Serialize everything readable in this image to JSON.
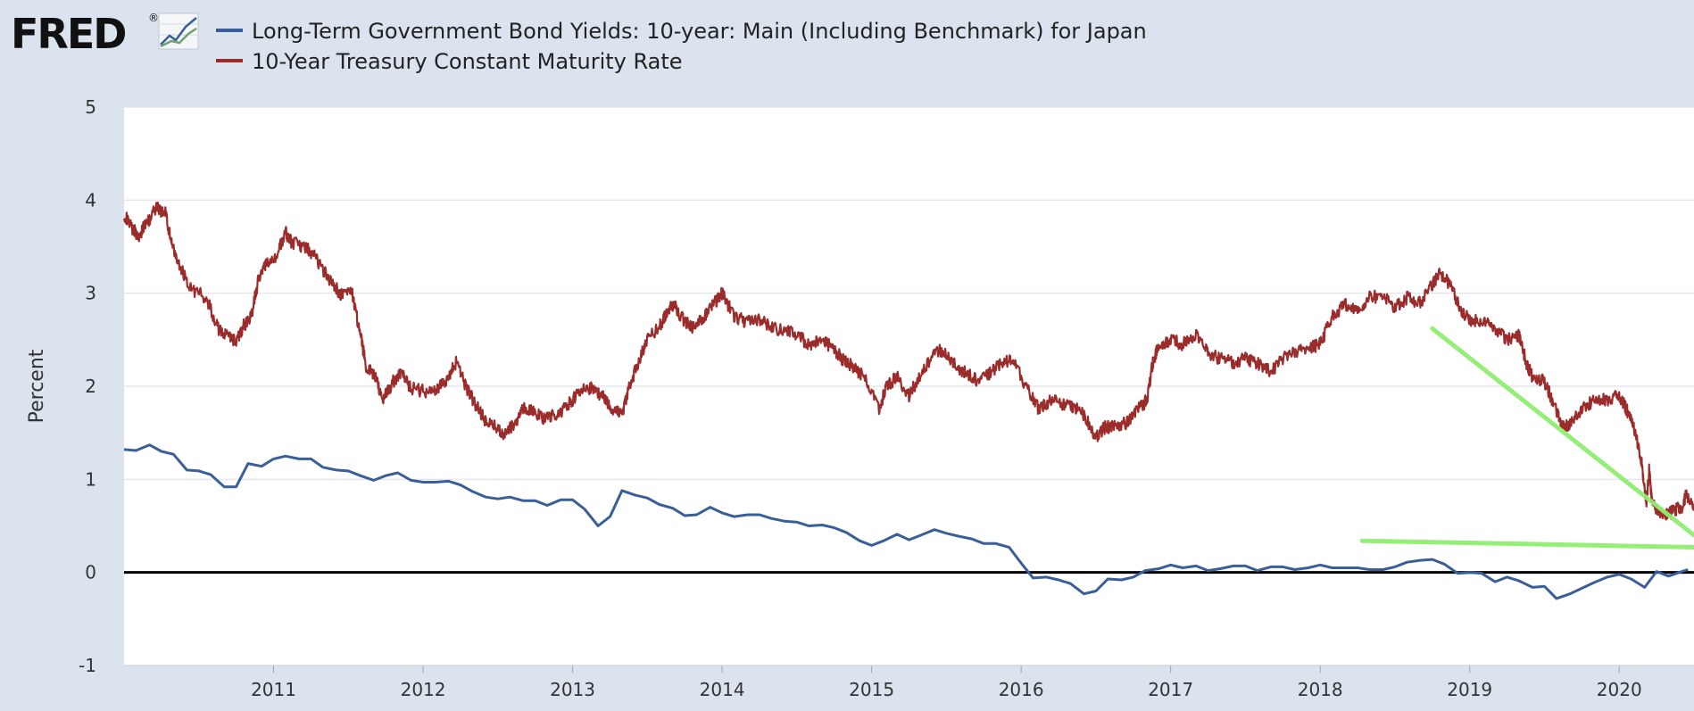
{
  "logo": {
    "text": "FRED",
    "registered": "®"
  },
  "chart_data": {
    "type": "line",
    "ylabel": "Percent",
    "xlabel": "",
    "ylim": [
      -1,
      5
    ],
    "yticks": [
      -1,
      0,
      1,
      2,
      3,
      4,
      5
    ],
    "x_range": [
      2010.0,
      2020.5
    ],
    "xticks": [
      "2011",
      "2012",
      "2013",
      "2014",
      "2015",
      "2016",
      "2017",
      "2018",
      "2019",
      "2020"
    ],
    "grid": true,
    "legend_position": "top-left",
    "colors": {
      "japan": "#3a5f98",
      "us": "#9b2c2c",
      "annotation": "#90ee70",
      "zero_line": "#000000"
    },
    "series": [
      {
        "name": "Long-Term Government Bond Yields: 10-year: Main (Including Benchmark) for Japan",
        "frequency": "monthly",
        "points": [
          [
            2010.0,
            1.32
          ],
          [
            2010.08,
            1.31
          ],
          [
            2010.17,
            1.37
          ],
          [
            2010.25,
            1.3
          ],
          [
            2010.33,
            1.27
          ],
          [
            2010.42,
            1.1
          ],
          [
            2010.5,
            1.09
          ],
          [
            2010.58,
            1.05
          ],
          [
            2010.67,
            0.92
          ],
          [
            2010.75,
            0.92
          ],
          [
            2010.83,
            1.17
          ],
          [
            2010.92,
            1.14
          ],
          [
            2011.0,
            1.22
          ],
          [
            2011.08,
            1.25
          ],
          [
            2011.17,
            1.22
          ],
          [
            2011.25,
            1.22
          ],
          [
            2011.33,
            1.13
          ],
          [
            2011.42,
            1.1
          ],
          [
            2011.5,
            1.09
          ],
          [
            2011.58,
            1.04
          ],
          [
            2011.67,
            0.99
          ],
          [
            2011.75,
            1.04
          ],
          [
            2011.83,
            1.07
          ],
          [
            2011.92,
            0.99
          ],
          [
            2012.0,
            0.97
          ],
          [
            2012.08,
            0.97
          ],
          [
            2012.17,
            0.98
          ],
          [
            2012.25,
            0.94
          ],
          [
            2012.33,
            0.87
          ],
          [
            2012.42,
            0.81
          ],
          [
            2012.5,
            0.79
          ],
          [
            2012.58,
            0.81
          ],
          [
            2012.67,
            0.77
          ],
          [
            2012.75,
            0.77
          ],
          [
            2012.83,
            0.72
          ],
          [
            2012.92,
            0.78
          ],
          [
            2013.0,
            0.78
          ],
          [
            2013.08,
            0.68
          ],
          [
            2013.17,
            0.5
          ],
          [
            2013.25,
            0.6
          ],
          [
            2013.33,
            0.88
          ],
          [
            2013.42,
            0.83
          ],
          [
            2013.5,
            0.8
          ],
          [
            2013.58,
            0.73
          ],
          [
            2013.67,
            0.69
          ],
          [
            2013.75,
            0.61
          ],
          [
            2013.83,
            0.62
          ],
          [
            2013.92,
            0.7
          ],
          [
            2014.0,
            0.64
          ],
          [
            2014.08,
            0.6
          ],
          [
            2014.17,
            0.62
          ],
          [
            2014.25,
            0.62
          ],
          [
            2014.33,
            0.58
          ],
          [
            2014.42,
            0.55
          ],
          [
            2014.5,
            0.54
          ],
          [
            2014.58,
            0.5
          ],
          [
            2014.67,
            0.51
          ],
          [
            2014.75,
            0.48
          ],
          [
            2014.83,
            0.43
          ],
          [
            2014.92,
            0.34
          ],
          [
            2015.0,
            0.29
          ],
          [
            2015.08,
            0.34
          ],
          [
            2015.17,
            0.41
          ],
          [
            2015.25,
            0.35
          ],
          [
            2015.33,
            0.4
          ],
          [
            2015.42,
            0.46
          ],
          [
            2015.5,
            0.42
          ],
          [
            2015.58,
            0.39
          ],
          [
            2015.67,
            0.36
          ],
          [
            2015.75,
            0.31
          ],
          [
            2015.83,
            0.31
          ],
          [
            2015.92,
            0.27
          ],
          [
            2016.0,
            0.1
          ],
          [
            2016.08,
            -0.06
          ],
          [
            2016.17,
            -0.05
          ],
          [
            2016.25,
            -0.08
          ],
          [
            2016.33,
            -0.12
          ],
          [
            2016.42,
            -0.23
          ],
          [
            2016.5,
            -0.2
          ],
          [
            2016.58,
            -0.07
          ],
          [
            2016.67,
            -0.08
          ],
          [
            2016.75,
            -0.05
          ],
          [
            2016.83,
            0.02
          ],
          [
            2016.92,
            0.04
          ],
          [
            2017.0,
            0.08
          ],
          [
            2017.08,
            0.05
          ],
          [
            2017.17,
            0.07
          ],
          [
            2017.25,
            0.02
          ],
          [
            2017.33,
            0.04
          ],
          [
            2017.42,
            0.07
          ],
          [
            2017.5,
            0.07
          ],
          [
            2017.58,
            0.02
          ],
          [
            2017.67,
            0.06
          ],
          [
            2017.75,
            0.06
          ],
          [
            2017.83,
            0.03
          ],
          [
            2017.92,
            0.05
          ],
          [
            2018.0,
            0.08
          ],
          [
            2018.08,
            0.05
          ],
          [
            2018.17,
            0.05
          ],
          [
            2018.25,
            0.05
          ],
          [
            2018.33,
            0.03
          ],
          [
            2018.42,
            0.03
          ],
          [
            2018.5,
            0.06
          ],
          [
            2018.58,
            0.11
          ],
          [
            2018.67,
            0.13
          ],
          [
            2018.75,
            0.14
          ],
          [
            2018.83,
            0.09
          ],
          [
            2018.92,
            -0.01
          ],
          [
            2019.0,
            0.0
          ],
          [
            2019.08,
            -0.01
          ],
          [
            2019.17,
            -0.1
          ],
          [
            2019.25,
            -0.05
          ],
          [
            2019.33,
            -0.09
          ],
          [
            2019.42,
            -0.16
          ],
          [
            2019.5,
            -0.15
          ],
          [
            2019.58,
            -0.28
          ],
          [
            2019.67,
            -0.23
          ],
          [
            2019.75,
            -0.17
          ],
          [
            2019.83,
            -0.11
          ],
          [
            2019.92,
            -0.05
          ],
          [
            2020.0,
            -0.02
          ],
          [
            2020.08,
            -0.07
          ],
          [
            2020.17,
            -0.16
          ],
          [
            2020.25,
            0.01
          ],
          [
            2020.33,
            -0.04
          ],
          [
            2020.42,
            0.01
          ],
          [
            2020.46,
            0.03
          ]
        ]
      },
      {
        "name": "10-Year Treasury Constant Maturity Rate",
        "frequency": "daily",
        "points": [
          [
            2010.0,
            3.85
          ],
          [
            2010.05,
            3.7
          ],
          [
            2010.1,
            3.62
          ],
          [
            2010.15,
            3.75
          ],
          [
            2010.22,
            3.92
          ],
          [
            2010.28,
            3.85
          ],
          [
            2010.32,
            3.5
          ],
          [
            2010.37,
            3.3
          ],
          [
            2010.45,
            3.05
          ],
          [
            2010.55,
            2.95
          ],
          [
            2010.63,
            2.62
          ],
          [
            2010.68,
            2.55
          ],
          [
            2010.75,
            2.48
          ],
          [
            2010.8,
            2.65
          ],
          [
            2010.85,
            2.75
          ],
          [
            2010.9,
            3.15
          ],
          [
            2010.95,
            3.3
          ],
          [
            2011.02,
            3.4
          ],
          [
            2011.08,
            3.65
          ],
          [
            2011.12,
            3.55
          ],
          [
            2011.2,
            3.5
          ],
          [
            2011.27,
            3.42
          ],
          [
            2011.33,
            3.25
          ],
          [
            2011.4,
            3.1
          ],
          [
            2011.45,
            2.98
          ],
          [
            2011.52,
            3.05
          ],
          [
            2011.58,
            2.55
          ],
          [
            2011.62,
            2.22
          ],
          [
            2011.68,
            2.1
          ],
          [
            2011.73,
            1.85
          ],
          [
            2011.8,
            2.05
          ],
          [
            2011.85,
            2.15
          ],
          [
            2011.92,
            1.98
          ],
          [
            2012.0,
            1.95
          ],
          [
            2012.08,
            1.95
          ],
          [
            2012.15,
            2.05
          ],
          [
            2012.22,
            2.25
          ],
          [
            2012.3,
            1.95
          ],
          [
            2012.37,
            1.75
          ],
          [
            2012.42,
            1.62
          ],
          [
            2012.5,
            1.55
          ],
          [
            2012.55,
            1.48
          ],
          [
            2012.62,
            1.62
          ],
          [
            2012.68,
            1.78
          ],
          [
            2012.75,
            1.7
          ],
          [
            2012.82,
            1.65
          ],
          [
            2012.9,
            1.7
          ],
          [
            2012.97,
            1.8
          ],
          [
            2013.05,
            1.95
          ],
          [
            2013.12,
            1.98
          ],
          [
            2013.2,
            1.9
          ],
          [
            2013.27,
            1.75
          ],
          [
            2013.33,
            1.7
          ],
          [
            2013.38,
            2.0
          ],
          [
            2013.45,
            2.3
          ],
          [
            2013.5,
            2.5
          ],
          [
            2013.58,
            2.65
          ],
          [
            2013.63,
            2.78
          ],
          [
            2013.68,
            2.9
          ],
          [
            2013.72,
            2.75
          ],
          [
            2013.8,
            2.62
          ],
          [
            2013.88,
            2.75
          ],
          [
            2013.95,
            2.9
          ],
          [
            2014.0,
            3.0
          ],
          [
            2014.08,
            2.75
          ],
          [
            2014.15,
            2.7
          ],
          [
            2014.25,
            2.72
          ],
          [
            2014.33,
            2.62
          ],
          [
            2014.42,
            2.6
          ],
          [
            2014.5,
            2.55
          ],
          [
            2014.58,
            2.45
          ],
          [
            2014.67,
            2.5
          ],
          [
            2014.75,
            2.4
          ],
          [
            2014.8,
            2.3
          ],
          [
            2014.88,
            2.2
          ],
          [
            2014.95,
            2.1
          ],
          [
            2015.05,
            1.75
          ],
          [
            2015.1,
            2.0
          ],
          [
            2015.17,
            2.1
          ],
          [
            2015.25,
            1.9
          ],
          [
            2015.35,
            2.2
          ],
          [
            2015.45,
            2.4
          ],
          [
            2015.5,
            2.35
          ],
          [
            2015.58,
            2.2
          ],
          [
            2015.65,
            2.12
          ],
          [
            2015.72,
            2.05
          ],
          [
            2015.8,
            2.15
          ],
          [
            2015.88,
            2.28
          ],
          [
            2015.95,
            2.25
          ],
          [
            2016.05,
            1.95
          ],
          [
            2016.12,
            1.75
          ],
          [
            2016.2,
            1.85
          ],
          [
            2016.28,
            1.8
          ],
          [
            2016.35,
            1.78
          ],
          [
            2016.42,
            1.7
          ],
          [
            2016.5,
            1.45
          ],
          [
            2016.55,
            1.55
          ],
          [
            2016.62,
            1.58
          ],
          [
            2016.7,
            1.6
          ],
          [
            2016.78,
            1.75
          ],
          [
            2016.84,
            1.85
          ],
          [
            2016.88,
            2.25
          ],
          [
            2016.92,
            2.45
          ],
          [
            2017.0,
            2.5
          ],
          [
            2017.08,
            2.45
          ],
          [
            2017.17,
            2.55
          ],
          [
            2017.25,
            2.35
          ],
          [
            2017.33,
            2.3
          ],
          [
            2017.42,
            2.25
          ],
          [
            2017.5,
            2.3
          ],
          [
            2017.58,
            2.25
          ],
          [
            2017.67,
            2.15
          ],
          [
            2017.75,
            2.3
          ],
          [
            2017.83,
            2.38
          ],
          [
            2017.92,
            2.4
          ],
          [
            2018.0,
            2.45
          ],
          [
            2018.08,
            2.75
          ],
          [
            2018.17,
            2.88
          ],
          [
            2018.25,
            2.8
          ],
          [
            2018.33,
            2.95
          ],
          [
            2018.42,
            2.98
          ],
          [
            2018.5,
            2.85
          ],
          [
            2018.58,
            2.95
          ],
          [
            2018.67,
            2.9
          ],
          [
            2018.75,
            3.1
          ],
          [
            2018.8,
            3.2
          ],
          [
            2018.87,
            3.1
          ],
          [
            2018.93,
            2.85
          ],
          [
            2019.0,
            2.7
          ],
          [
            2019.08,
            2.7
          ],
          [
            2019.17,
            2.62
          ],
          [
            2019.25,
            2.5
          ],
          [
            2019.33,
            2.55
          ],
          [
            2019.38,
            2.25
          ],
          [
            2019.42,
            2.1
          ],
          [
            2019.5,
            2.05
          ],
          [
            2019.58,
            1.75
          ],
          [
            2019.63,
            1.55
          ],
          [
            2019.67,
            1.6
          ],
          [
            2019.75,
            1.75
          ],
          [
            2019.83,
            1.85
          ],
          [
            2019.92,
            1.85
          ],
          [
            2020.0,
            1.9
          ],
          [
            2020.05,
            1.75
          ],
          [
            2020.1,
            1.55
          ],
          [
            2020.15,
            1.2
          ],
          [
            2020.18,
            0.7
          ],
          [
            2020.2,
            1.1
          ],
          [
            2020.22,
            0.75
          ],
          [
            2020.27,
            0.65
          ],
          [
            2020.33,
            0.62
          ],
          [
            2020.38,
            0.68
          ],
          [
            2020.42,
            0.7
          ],
          [
            2020.45,
            0.85
          ],
          [
            2020.5,
            0.66
          ]
        ]
      }
    ],
    "annotations": [
      {
        "type": "trendline",
        "from": [
          2018.75,
          2.62
        ],
        "to": [
          2020.5,
          0.4
        ]
      },
      {
        "type": "trendline",
        "from": [
          2018.28,
          0.34
        ],
        "to": [
          2020.5,
          0.27
        ]
      }
    ]
  }
}
